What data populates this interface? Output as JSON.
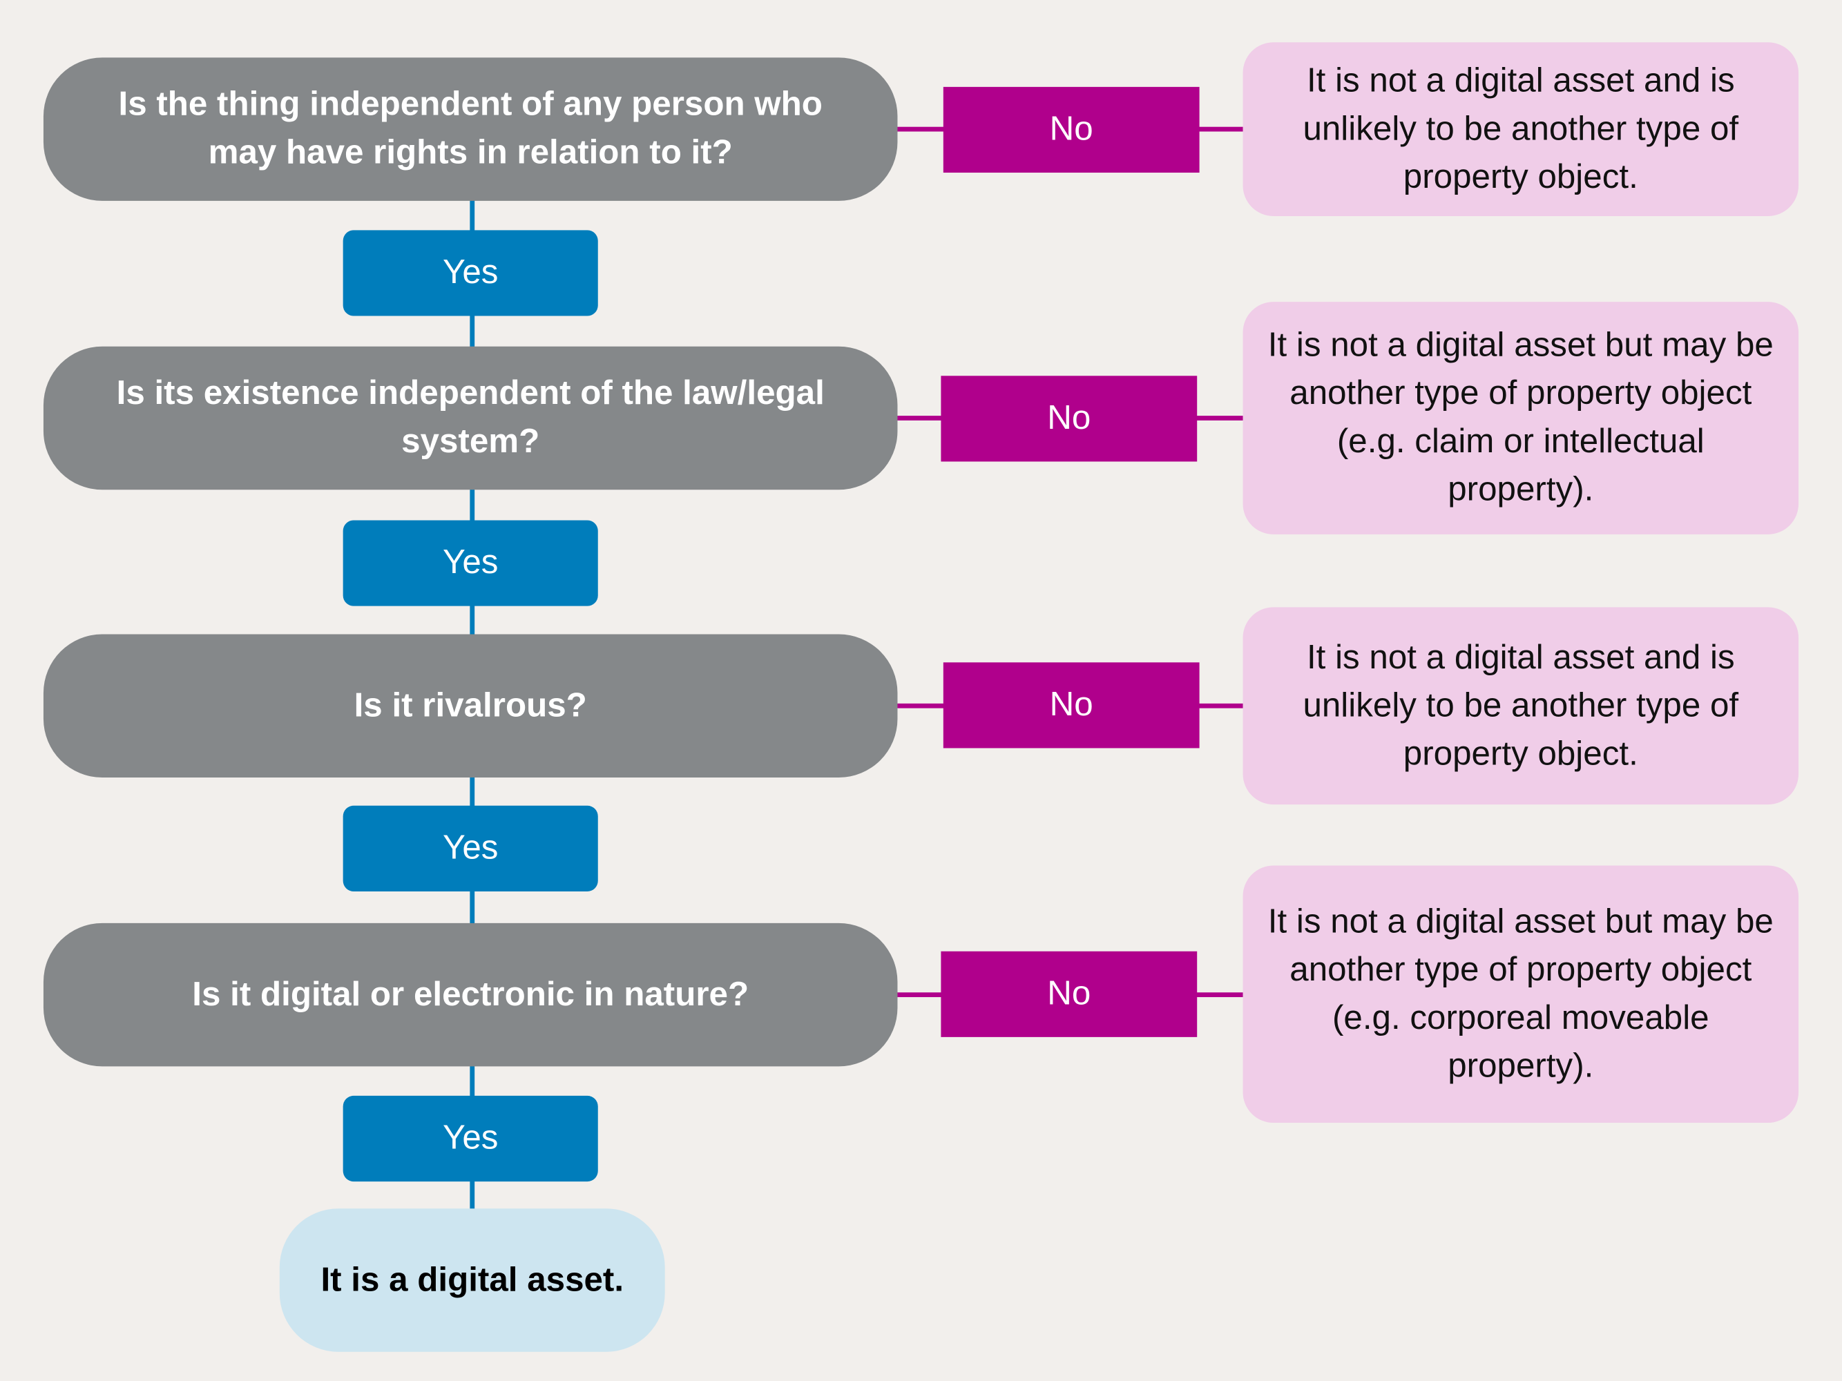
{
  "colors": {
    "question": "#85888a",
    "yes": "#007dbb",
    "no": "#b0008c",
    "outcome": "#f0cde8",
    "final": "#cde5f0",
    "background": "#f2efec"
  },
  "questions": [
    {
      "text": "Is the thing independent of any person who may have rights in relation to it?",
      "yes": "Yes",
      "no": "No",
      "outcome": "It is not a digital asset and is unlikely to be another type of property object."
    },
    {
      "text": "Is its existence independent of the law/legal system?",
      "yes": "Yes",
      "no": "No",
      "outcome": "It is not a digital asset but may be another type of property object (e.g. claim or intellectual property)."
    },
    {
      "text": "Is it rivalrous?",
      "yes": "Yes",
      "no": "No",
      "outcome": "It is not a digital asset and is unlikely to be another type of property object."
    },
    {
      "text": "Is it digital or electronic in nature?",
      "yes": "Yes",
      "no": "No",
      "outcome": "It is not a digital asset but may be another type of property object (e.g. corporeal moveable property)."
    }
  ],
  "final": "It is a digital asset."
}
